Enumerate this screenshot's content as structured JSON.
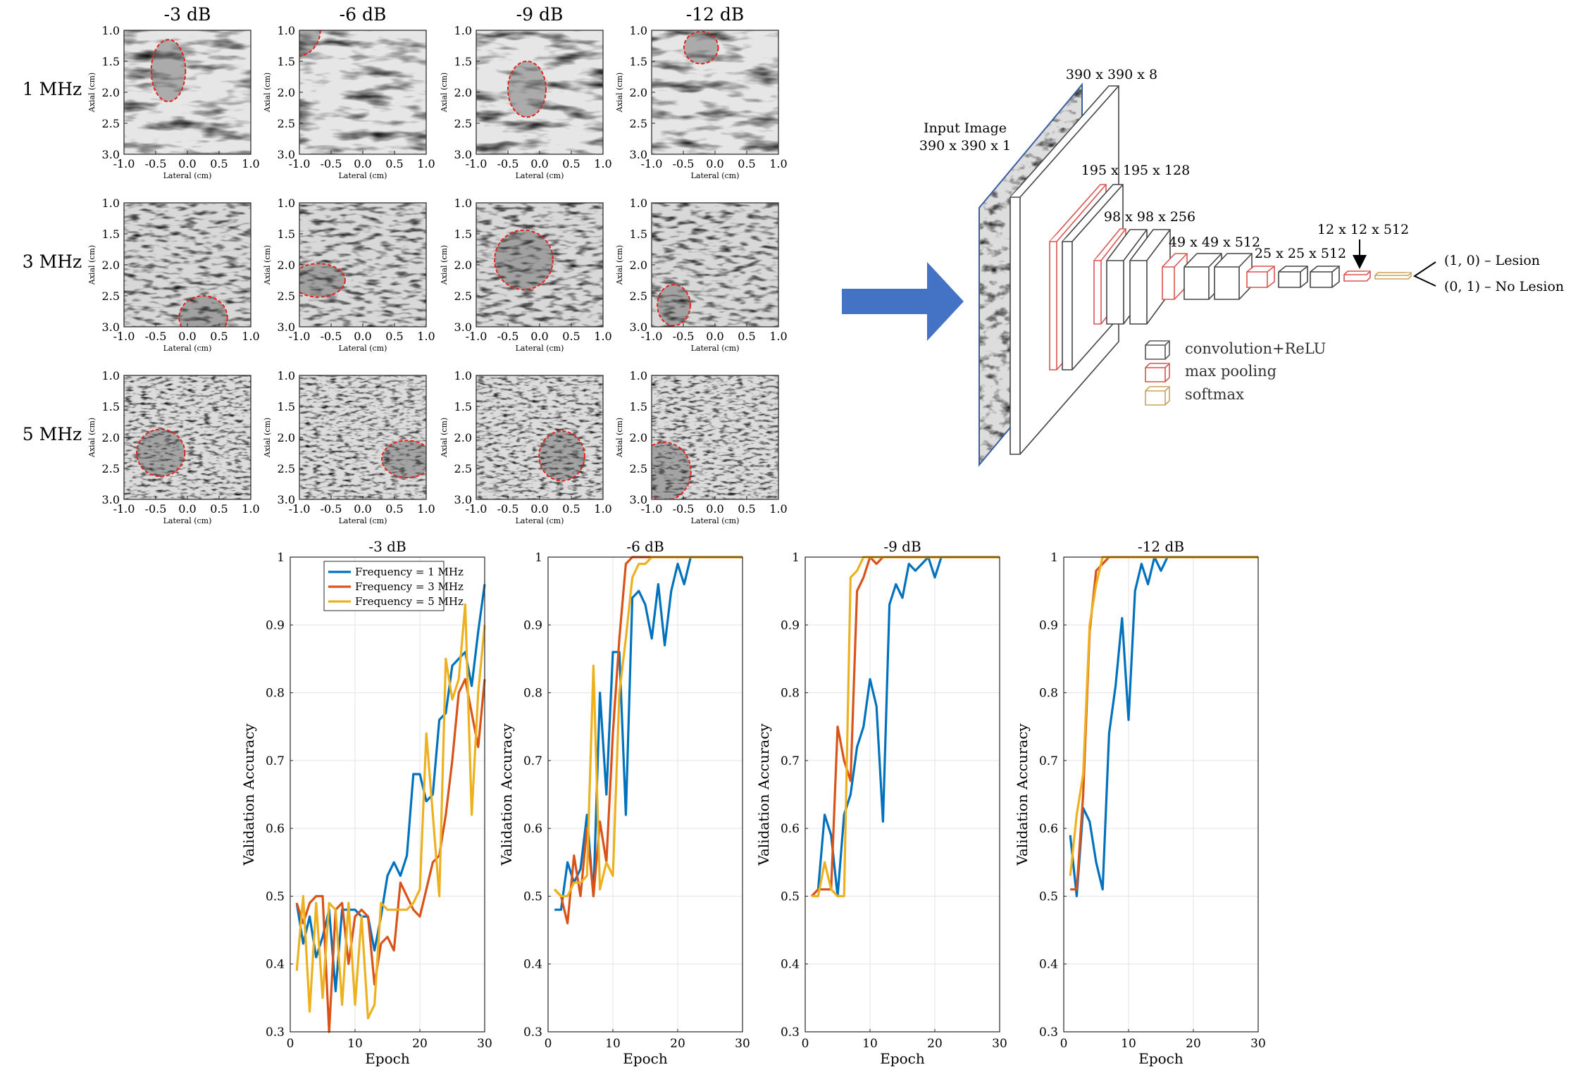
{
  "ultrasound_grid": {
    "columns": [
      "-3 dB",
      "-6 dB",
      "-9 dB",
      "-12 dB"
    ],
    "rows": [
      "1 MHz",
      "3 MHz",
      "5 MHz"
    ],
    "axial_label": "Axial (cm)",
    "lateral_label": "Lateral (cm)",
    "axial_ticks": [
      "1.0",
      "1.5",
      "2.0",
      "2.5",
      "3.0"
    ],
    "lateral_ticks": [
      "-1.0",
      "-0.5",
      "0.0",
      "0.5",
      "1.0"
    ],
    "lesions": [
      [
        {
          "x": -0.3,
          "z": 1.65,
          "rx": 0.27,
          "rz": 0.5
        },
        {
          "x": -1.05,
          "z": 1.0,
          "rx": 0.38,
          "rz": 0.42
        },
        {
          "x": -0.2,
          "z": 1.95,
          "rx": 0.3,
          "rz": 0.45
        },
        {
          "x": -0.22,
          "z": 1.28,
          "rx": 0.27,
          "rz": 0.26
        }
      ],
      [
        {
          "x": 0.25,
          "z": 2.85,
          "rx": 0.38,
          "rz": 0.35
        },
        {
          "x": -0.7,
          "z": 2.25,
          "rx": 0.42,
          "rz": 0.27
        },
        {
          "x": -0.25,
          "z": 1.92,
          "rx": 0.46,
          "rz": 0.48
        },
        {
          "x": -0.65,
          "z": 2.65,
          "rx": 0.26,
          "rz": 0.33
        }
      ],
      [
        {
          "x": -0.42,
          "z": 2.25,
          "rx": 0.38,
          "rz": 0.38
        },
        {
          "x": 0.7,
          "z": 2.35,
          "rx": 0.4,
          "rz": 0.3
        },
        {
          "x": 0.35,
          "z": 2.3,
          "rx": 0.36,
          "rz": 0.4
        },
        {
          "x": -0.8,
          "z": 2.55,
          "rx": 0.42,
          "rz": 0.47
        }
      ]
    ]
  },
  "cnn": {
    "input_caption_1": "Input Image",
    "input_caption_2": "390 x 390 x 1",
    "layer1_label": "390 x 390 x 8",
    "layer2_label": "195 x 195 x 128",
    "layer3_label": "98 x 98 x 256",
    "layer4_label": "49 x 49 x 512",
    "layer5_label": "25 x 25 x 512",
    "layer6_label": "12 x 12 x 512",
    "output_lesion": "(1, 0) – Lesion",
    "output_no_lesion": "(0, 1) – No Lesion",
    "legend": [
      {
        "label": "convolution+ReLU",
        "color": "#555555"
      },
      {
        "label": "max pooling",
        "color": "#d9534f"
      },
      {
        "label": "softmax",
        "color": "#c9a25a"
      }
    ],
    "arrow_color": "#4472c4"
  },
  "chart_data": [
    {
      "type": "line",
      "title": "-3 dB",
      "xlabel": "Epoch",
      "ylabel": "Validation Accuracy",
      "xlim": [
        0,
        30
      ],
      "ylim": [
        0.3,
        1
      ],
      "grid": true,
      "legend_position": "top-right",
      "x": [
        1,
        2,
        3,
        4,
        5,
        6,
        7,
        8,
        9,
        10,
        11,
        12,
        13,
        14,
        15,
        16,
        17,
        18,
        19,
        20,
        21,
        22,
        23,
        24,
        25,
        26,
        27,
        28,
        29,
        30
      ],
      "series": [
        {
          "name": "Frequency = 1 MHz",
          "color": "#0072bd",
          "values": [
            0.49,
            0.43,
            0.47,
            0.41,
            0.44,
            0.48,
            0.36,
            0.48,
            0.48,
            0.48,
            0.47,
            0.47,
            0.42,
            0.47,
            0.53,
            0.55,
            0.53,
            0.56,
            0.68,
            0.68,
            0.64,
            0.65,
            0.76,
            0.77,
            0.84,
            0.85,
            0.86,
            0.81,
            0.89,
            0.96
          ]
        },
        {
          "name": "Frequency = 3 MHz",
          "color": "#d95319",
          "values": [
            0.49,
            0.46,
            0.49,
            0.5,
            0.5,
            0.3,
            0.48,
            0.49,
            0.4,
            0.47,
            0.48,
            0.47,
            0.37,
            0.43,
            0.44,
            0.42,
            0.52,
            0.5,
            0.48,
            0.47,
            0.51,
            0.55,
            0.56,
            0.62,
            0.7,
            0.8,
            0.82,
            0.77,
            0.72,
            0.82
          ]
        },
        {
          "name": "Frequency = 5 MHz",
          "color": "#edb120",
          "values": [
            0.39,
            0.5,
            0.33,
            0.49,
            0.35,
            0.49,
            0.48,
            0.34,
            0.49,
            0.34,
            0.47,
            0.32,
            0.34,
            0.49,
            0.48,
            0.48,
            0.48,
            0.48,
            0.49,
            0.51,
            0.74,
            0.62,
            0.5,
            0.85,
            0.79,
            0.82,
            0.93,
            0.62,
            0.8,
            0.9
          ]
        }
      ]
    },
    {
      "type": "line",
      "title": "-6 dB",
      "xlabel": "Epoch",
      "ylabel": "Validation Accuracy",
      "xlim": [
        0,
        30
      ],
      "ylim": [
        0.3,
        1
      ],
      "grid": true,
      "x": [
        1,
        2,
        3,
        4,
        5,
        6,
        7,
        8,
        9,
        10,
        11,
        12,
        13,
        14,
        15,
        16,
        17,
        18,
        19,
        20,
        21,
        22,
        23,
        24,
        25,
        26,
        27,
        28,
        29,
        30
      ],
      "series": [
        {
          "name": "Frequency = 1 MHz",
          "color": "#0072bd",
          "values": [
            0.48,
            0.48,
            0.55,
            0.52,
            0.54,
            0.62,
            0.5,
            0.8,
            0.65,
            0.86,
            0.86,
            0.62,
            0.94,
            0.95,
            0.93,
            0.88,
            0.96,
            0.87,
            0.95,
            0.99,
            0.96,
            1,
            1,
            1,
            1,
            1,
            1,
            1,
            1,
            1
          ]
        },
        {
          "name": "Frequency = 3 MHz",
          "color": "#d95319",
          "values": [
            0.51,
            0.5,
            0.46,
            0.56,
            0.5,
            0.6,
            0.5,
            0.61,
            0.55,
            0.74,
            0.88,
            0.99,
            1,
            1,
            1,
            1,
            1,
            1,
            1,
            1,
            1,
            1,
            1,
            1,
            1,
            1,
            1,
            1,
            1,
            1
          ]
        },
        {
          "name": "Frequency = 5 MHz",
          "color": "#edb120",
          "values": [
            0.51,
            0.5,
            0.5,
            0.52,
            0.52,
            0.53,
            0.84,
            0.51,
            0.55,
            0.53,
            0.8,
            0.88,
            0.97,
            0.99,
            0.99,
            1,
            1,
            1,
            1,
            1,
            1,
            1,
            1,
            1,
            1,
            1,
            1,
            1,
            1,
            1
          ]
        }
      ]
    },
    {
      "type": "line",
      "title": "-9 dB",
      "xlabel": "Epoch",
      "ylabel": "Validation Accuracy",
      "xlim": [
        0,
        30
      ],
      "ylim": [
        0.3,
        1
      ],
      "grid": true,
      "x": [
        1,
        2,
        3,
        4,
        5,
        6,
        7,
        8,
        9,
        10,
        11,
        12,
        13,
        14,
        15,
        16,
        17,
        18,
        19,
        20,
        21,
        22,
        23,
        24,
        25,
        26,
        27,
        28,
        29,
        30
      ],
      "series": [
        {
          "name": "Frequency = 1 MHz",
          "color": "#0072bd",
          "values": [
            0.5,
            0.51,
            0.62,
            0.59,
            0.5,
            0.62,
            0.65,
            0.72,
            0.75,
            0.82,
            0.78,
            0.61,
            0.93,
            0.96,
            0.94,
            0.99,
            0.98,
            0.99,
            1,
            0.97,
            1,
            1,
            1,
            1,
            1,
            1,
            1,
            1,
            1,
            1
          ]
        },
        {
          "name": "Frequency = 3 MHz",
          "color": "#d95319",
          "values": [
            0.5,
            0.51,
            0.51,
            0.51,
            0.75,
            0.7,
            0.67,
            0.95,
            0.97,
            1,
            0.99,
            1,
            1,
            1,
            1,
            1,
            1,
            1,
            1,
            1,
            1,
            1,
            1,
            1,
            1,
            1,
            1,
            1,
            1,
            1
          ]
        },
        {
          "name": "Frequency = 5 MHz",
          "color": "#edb120",
          "values": [
            0.5,
            0.5,
            0.55,
            0.51,
            0.5,
            0.5,
            0.97,
            0.98,
            1,
            1,
            1,
            1,
            1,
            1,
            1,
            1,
            1,
            1,
            1,
            1,
            1,
            1,
            1,
            1,
            1,
            1,
            1,
            1,
            1,
            1
          ]
        }
      ]
    },
    {
      "type": "line",
      "title": "-12 dB",
      "xlabel": "Epoch",
      "ylabel": "Validation Accuracy",
      "xlim": [
        0,
        30
      ],
      "ylim": [
        0.3,
        1
      ],
      "grid": true,
      "x": [
        1,
        2,
        3,
        4,
        5,
        6,
        7,
        8,
        9,
        10,
        11,
        12,
        13,
        14,
        15,
        16,
        17,
        18,
        19,
        20,
        21,
        22,
        23,
        24,
        25,
        26,
        27,
        28,
        29,
        30
      ],
      "series": [
        {
          "name": "Frequency = 1 MHz",
          "color": "#0072bd",
          "values": [
            0.59,
            0.5,
            0.63,
            0.61,
            0.55,
            0.51,
            0.74,
            0.81,
            0.91,
            0.76,
            0.95,
            0.99,
            0.96,
            1,
            0.98,
            1,
            1,
            1,
            1,
            1,
            1,
            1,
            1,
            1,
            1,
            1,
            1,
            1,
            1,
            1
          ]
        },
        {
          "name": "Frequency = 3 MHz",
          "color": "#d95319",
          "values": [
            0.51,
            0.51,
            0.65,
            0.89,
            0.98,
            0.99,
            1,
            1,
            1,
            1,
            1,
            1,
            1,
            1,
            1,
            1,
            1,
            1,
            1,
            1,
            1,
            1,
            1,
            1,
            1,
            1,
            1,
            1,
            1,
            1
          ]
        },
        {
          "name": "Frequency = 5 MHz",
          "color": "#edb120",
          "values": [
            0.53,
            0.62,
            0.68,
            0.9,
            0.96,
            1,
            1,
            1,
            1,
            1,
            1,
            1,
            1,
            1,
            1,
            1,
            1,
            1,
            1,
            1,
            1,
            1,
            1,
            1,
            1,
            1,
            1,
            1,
            1,
            1
          ]
        }
      ]
    }
  ]
}
